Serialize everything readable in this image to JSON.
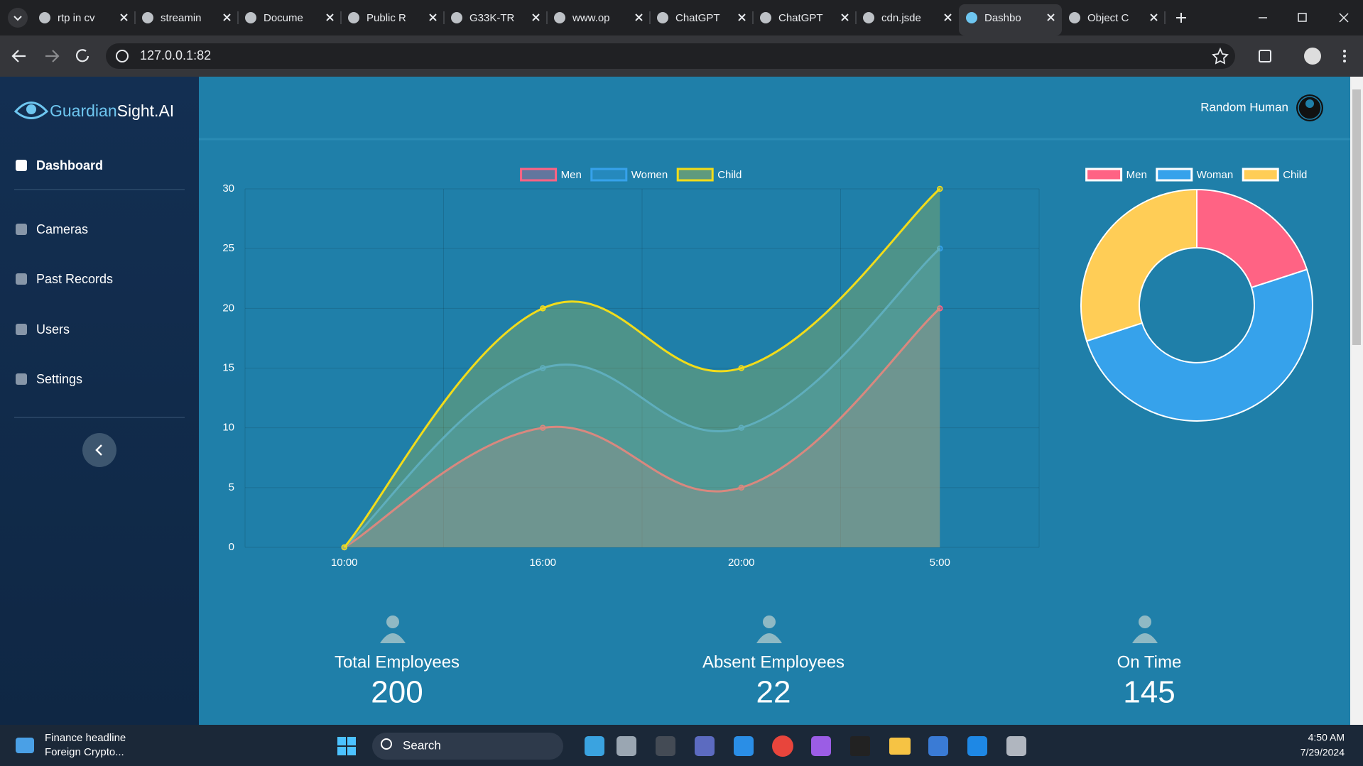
{
  "browser": {
    "tabs": [
      "rtp in cv",
      "streamin",
      "Docume",
      "Public R",
      "G33K-TR",
      "www.op",
      "ChatGPT",
      "ChatGPT",
      "cdn.jsde",
      "Dashbo",
      "Object C"
    ],
    "address": "127.0.0.1:82"
  },
  "sidebar": {
    "brand_prefix": "Guardian",
    "brand_suffix": "Sight.AI",
    "items": [
      "Dashboard",
      "Cameras",
      "Past Records",
      "Users",
      "Settings"
    ]
  },
  "header": {
    "user": "Random Human"
  },
  "chart_data": [
    {
      "type": "line",
      "categories": [
        "10:00",
        "16:00",
        "20:00",
        "5:00"
      ],
      "series": [
        {
          "name": "Men",
          "color": "#ff6384",
          "values": [
            0,
            10,
            5,
            20
          ]
        },
        {
          "name": "Women",
          "color": "#36a2eb",
          "values": [
            0,
            15,
            10,
            25
          ]
        },
        {
          "name": "Child",
          "color": "#f2dc1a",
          "values": [
            0,
            20,
            15,
            30
          ]
        }
      ],
      "ylim": [
        0,
        30
      ],
      "yticks": [
        0,
        5,
        10,
        15,
        20,
        25,
        30
      ],
      "grid": true,
      "fill": true,
      "legend": "top"
    },
    {
      "type": "doughnut",
      "categories": [
        "Men",
        "Woman",
        "Child"
      ],
      "values": [
        20,
        50,
        30
      ],
      "colors": [
        "#ff6384",
        "#36a2eb",
        "#ffcd56"
      ],
      "legend": "top"
    }
  ],
  "stats": [
    {
      "label": "Total Employees",
      "value": 200
    },
    {
      "label": "Absent Employees",
      "value": 22
    },
    {
      "label": "On Time",
      "value": 145
    }
  ],
  "taskbar": {
    "news_title": "Finance headline",
    "news_text": "Foreign Crypto...",
    "search": "Search",
    "time": "4:50 AM",
    "date": "7/29/2024"
  }
}
